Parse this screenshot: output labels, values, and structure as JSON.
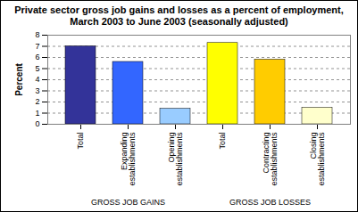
{
  "chart_data": {
    "type": "bar",
    "title": "Private sector gross job gains and losses as a percent of employment, March 2003 to June 2003 (seasonally adjusted)",
    "y_label": "Percent",
    "categories": [
      "Total",
      "Expanding establishments",
      "Opening establishments",
      "Total",
      "Contracting establishments",
      "Closing establishments"
    ],
    "groups": [
      "GROSS JOB GAINS",
      "GROSS JOB GAINS",
      "GROSS JOB GAINS",
      "GROSS JOB LOSSES",
      "GROSS JOB LOSSES",
      "GROSS JOB LOSSES"
    ],
    "values": [
      7.0,
      5.6,
      1.4,
      7.3,
      5.8,
      1.5
    ],
    "colors": [
      "#333399",
      "#3366ff",
      "#99ccff",
      "#ffff00",
      "#ffcc00",
      "#ffffcc"
    ],
    "ylim": [
      0,
      8
    ],
    "yticks": [
      0,
      1,
      2,
      3,
      4,
      5,
      6,
      7,
      8
    ],
    "grid": true
  }
}
